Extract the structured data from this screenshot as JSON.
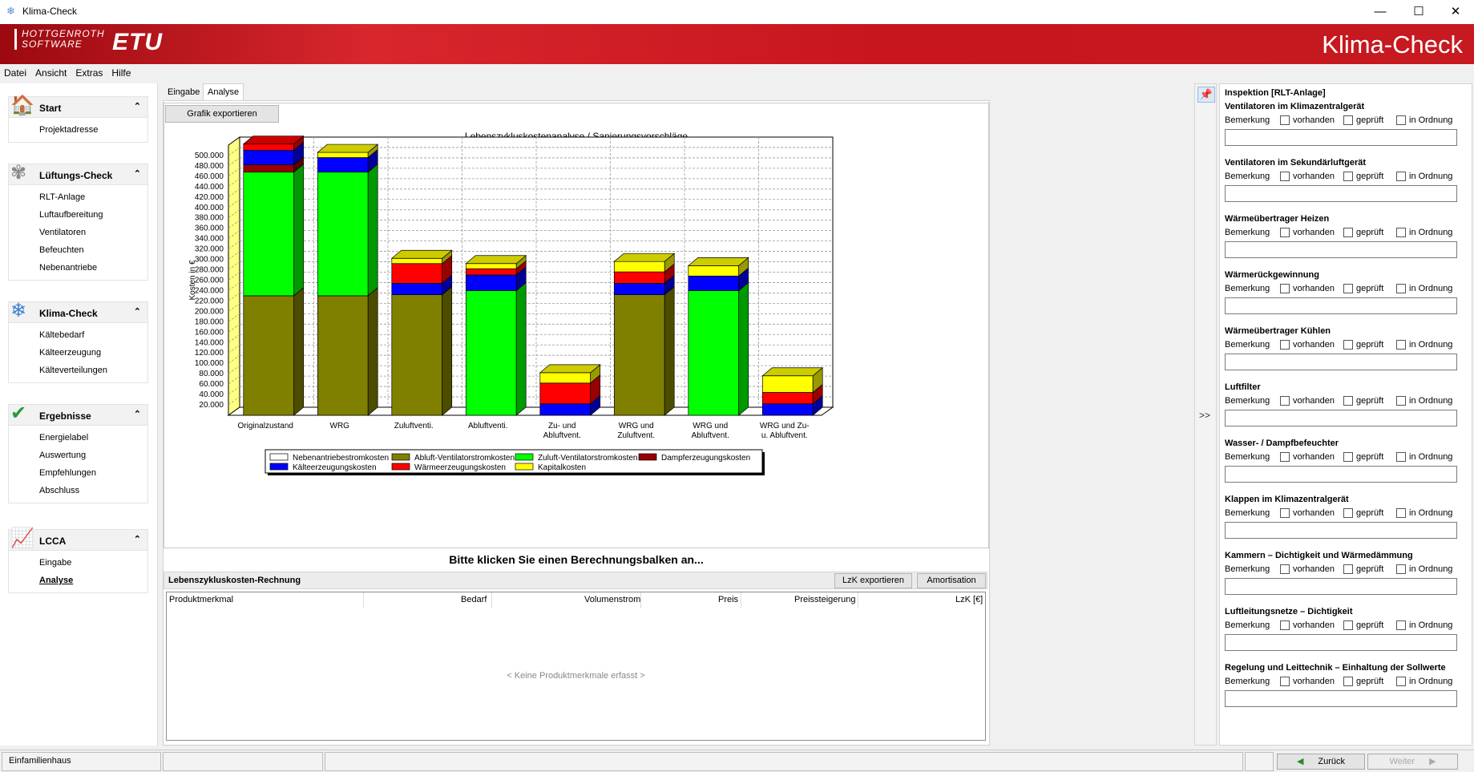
{
  "window": {
    "title": "Klima-Check",
    "controls": {
      "minimize": "—",
      "maximize": "☐",
      "close": "✕"
    }
  },
  "banner": {
    "logo_line1": "HOTTGENROTH",
    "logo_line2": "SOFTWARE",
    "logo_brand": "ETU",
    "app_title": "Klima-Check"
  },
  "menu": [
    "Datei",
    "Ansicht",
    "Extras",
    "Hilfe"
  ],
  "sidebar": {
    "groups": [
      {
        "title": "Start",
        "icon": "house-icon",
        "glyph": "🏠",
        "items": [
          "Projektadresse"
        ]
      },
      {
        "title": "Lüftungs-Check",
        "icon": "fan-icon",
        "glyph": "✾",
        "items": [
          "RLT-Anlage",
          "Luftaufbereitung",
          "Ventilatoren",
          "Befeuchten",
          "Nebenantriebe"
        ]
      },
      {
        "title": "Klima-Check",
        "icon": "snowflake-icon",
        "glyph": "❄",
        "items": [
          "Kältebedarf",
          "Kälteerzeugung",
          "Kälteverteilungen"
        ]
      },
      {
        "title": "Ergebnisse",
        "icon": "check-icon",
        "glyph": "✔",
        "items": [
          "Energielabel",
          "Auswertung",
          "Empfehlungen",
          "Abschluss"
        ]
      },
      {
        "title": "LCCA",
        "icon": "chart-growth-icon",
        "glyph": "📈",
        "items": [
          "Eingabe",
          "Analyse"
        ]
      }
    ],
    "collapse_glyph": "⌃",
    "active_item": "Analyse"
  },
  "tabs": [
    "Eingabe",
    "Analyse"
  ],
  "active_tab": "Analyse",
  "export_button": "Grafik exportieren",
  "chart_data": {
    "type": "bar",
    "stacked": true,
    "title": "Lebenszykluskostenanalyse / Sanierungsvorschläge",
    "ylabel": "Kosten in €",
    "xlabel": "",
    "ylim": [
      0,
      520000
    ],
    "yticks": [
      20000,
      40000,
      60000,
      80000,
      100000,
      120000,
      140000,
      160000,
      180000,
      200000,
      220000,
      240000,
      260000,
      280000,
      300000,
      320000,
      340000,
      360000,
      380000,
      400000,
      420000,
      440000,
      460000,
      480000,
      500000
    ],
    "ytick_labels": [
      "20.000",
      "40.000",
      "60.000",
      "80.000",
      "100.000",
      "120.000",
      "140.000",
      "160.000",
      "180.000",
      "200.000",
      "220.000",
      "240.000",
      "260.000",
      "280.000",
      "300.000",
      "320.000",
      "340.000",
      "360.000",
      "380.000",
      "400.000",
      "420.000",
      "440.000",
      "460.000",
      "480.000",
      "500.000"
    ],
    "grid": true,
    "legend_position": "bottom",
    "categories": [
      [
        "Originalzustand"
      ],
      [
        "WRG"
      ],
      [
        "Zuluftventi."
      ],
      [
        "Abluftventi."
      ],
      [
        "Zu- und",
        "Abluftvent."
      ],
      [
        "WRG und",
        "Zuluftvent."
      ],
      [
        "WRG und",
        "Abluftvent."
      ],
      [
        "WRG und Zu-",
        "u. Abluftvent."
      ]
    ],
    "series": [
      {
        "name": "Nebenantriebestromkosten",
        "color": "#ffffff",
        "values": [
          0,
          0,
          0,
          0,
          0,
          0,
          0,
          0
        ]
      },
      {
        "name": "Abluft-Ventilatorstromkosten",
        "color": "#808000",
        "values": [
          230000,
          230000,
          232000,
          0,
          0,
          232000,
          0,
          0
        ]
      },
      {
        "name": "Zuluft-Ventilatorstromkosten",
        "color": "#00ff00",
        "values": [
          238000,
          238000,
          0,
          240000,
          0,
          0,
          240000,
          0
        ]
      },
      {
        "name": "Dampferzeugungskosten",
        "color": "#990000",
        "values": [
          14000,
          0,
          0,
          0,
          0,
          0,
          0,
          0
        ]
      },
      {
        "name": "Kälteerzeugungskosten",
        "color": "#0000ff",
        "values": [
          28000,
          28000,
          22000,
          30000,
          22000,
          22000,
          28000,
          22000
        ]
      },
      {
        "name": "Wärmeerzeugungskosten",
        "color": "#ff0000",
        "values": [
          12000,
          0,
          38000,
          12000,
          40000,
          22000,
          0,
          22000
        ]
      },
      {
        "name": "Kapitalkosten",
        "color": "#ffff00",
        "values": [
          0,
          10000,
          10000,
          10000,
          20000,
          20000,
          20000,
          32000
        ]
      }
    ],
    "legend_order": [
      "Nebenantriebestromkosten",
      "Abluft-Ventilatorstromkosten",
      "Zuluft-Ventilatorstromkosten",
      "Dampferzeugungskosten",
      "Kälteerzeugungskosten",
      "Wärmeerzeugungskosten",
      "Kapitalkosten"
    ]
  },
  "hint": "Bitte klicken Sie einen Berechnungsbalken an...",
  "lzk": {
    "title": "Lebenszykluskosten-Rechnung",
    "export_button": "LzK exportieren",
    "amort_button": "Amortisation",
    "columns": [
      "Produktmerkmal",
      "Bedarf",
      "Volumenstrom",
      "Preis",
      "Preissteigerung",
      "LzK [€]"
    ],
    "empty": "< Keine Produktmerkmale erfasst >"
  },
  "side_panel": {
    "pin_glyph": "📌",
    "expand": ">>"
  },
  "inspection": {
    "title": "Inspektion [RLT-Anlage]",
    "row_label": "Bemerkung",
    "checks": [
      "vorhanden",
      "geprüft",
      "in Ordnung"
    ],
    "sections": [
      "Ventilatoren im Klimazentralgerät",
      "Ventilatoren im Sekundärluftgerät",
      "Wärmeübertrager Heizen",
      "Wärmerückgewinnung",
      "Wärmeübertrager Kühlen",
      "Luftfilter",
      "Wasser- / Dampfbefeuchter",
      "Klappen im Klimazentralgerät",
      "Kammern – Dichtigkeit und Wärmedämmung",
      "Luftleitungsnetze – Dichtigkeit",
      "Regelung und Leittechnik – Einhaltung der Sollwerte"
    ]
  },
  "status": {
    "project": "Einfamilienhaus",
    "back": "Zurück",
    "back_glyph": "◀",
    "next": "Weiter",
    "next_glyph": "▶"
  }
}
